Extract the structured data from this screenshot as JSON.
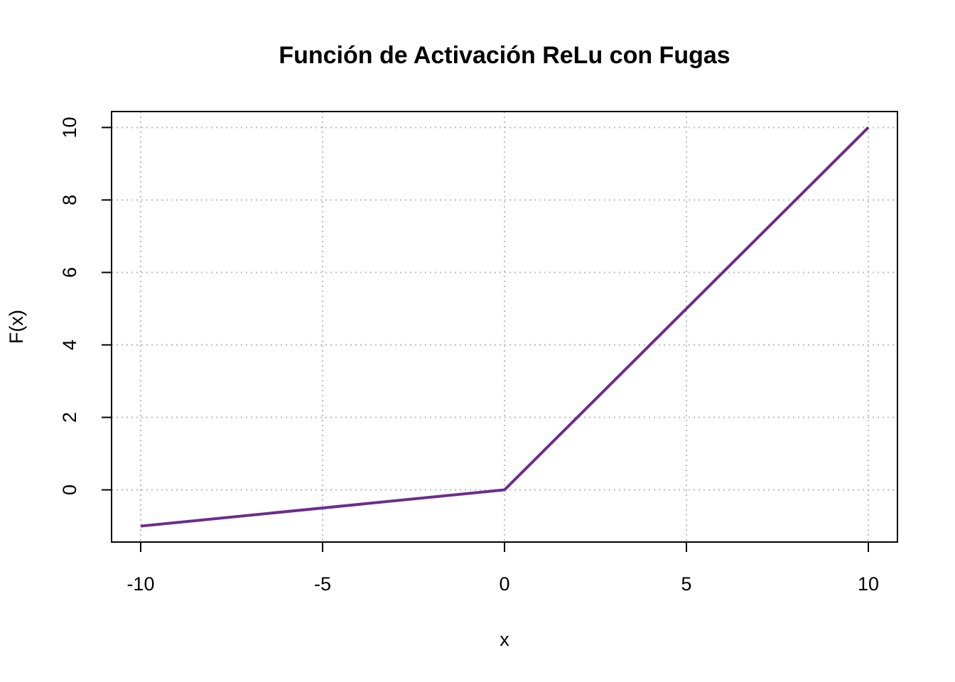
{
  "chart_data": {
    "type": "line",
    "title": "Función de Activación ReLu con Fugas",
    "x_label": "x",
    "y_label": "F(x)",
    "x": [
      -10,
      0,
      10
    ],
    "values": [
      -1,
      0,
      10
    ],
    "color": "#6b2d8b",
    "xlim": [
      -10.8,
      10.8
    ],
    "ylim": [
      -1.44,
      10.44
    ],
    "xticks": [
      -10,
      -5,
      0,
      5,
      10
    ],
    "yticks": [
      0,
      2,
      4,
      6,
      8,
      10
    ],
    "grid": true
  }
}
